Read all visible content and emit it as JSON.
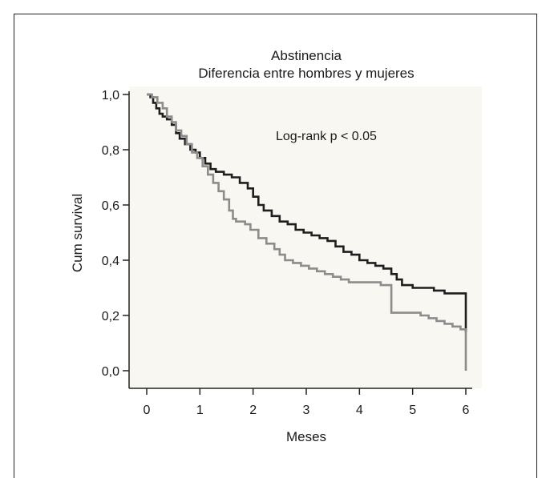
{
  "chart_data": {
    "type": "line",
    "step": true,
    "title": "Abstinencia",
    "subtitle": "Diferencia entre hombres y mujeres",
    "xlabel": "Meses",
    "ylabel": "Cum survival",
    "xlim": [
      0,
      6
    ],
    "ylim": [
      0,
      1
    ],
    "x_ticks": [
      "0",
      "1",
      "2",
      "3",
      "4",
      "5",
      "6"
    ],
    "y_ticks": [
      "0,0",
      "0,2",
      "0,4",
      "0,6",
      "0,8",
      "1,0"
    ],
    "annotation": "Log-rank p < 0.05",
    "grid": false,
    "legend": "none",
    "series": [
      {
        "color": "#1e1e1e",
        "x": [
          0.0,
          0.07,
          0.12,
          0.18,
          0.24,
          0.3,
          0.38,
          0.47,
          0.55,
          0.62,
          0.72,
          0.82,
          0.92,
          1.0,
          1.1,
          1.2,
          1.3,
          1.45,
          1.6,
          1.75,
          1.9,
          2.0,
          2.1,
          2.2,
          2.35,
          2.5,
          2.65,
          2.8,
          2.95,
          3.1,
          3.25,
          3.4,
          3.55,
          3.7,
          3.85,
          4.0,
          4.15,
          4.3,
          4.45,
          4.6,
          4.7,
          4.8,
          5.0,
          5.2,
          5.4,
          5.6,
          5.8,
          6.0,
          6.0
        ],
        "y": [
          1.0,
          0.99,
          0.97,
          0.95,
          0.93,
          0.92,
          0.91,
          0.89,
          0.86,
          0.84,
          0.82,
          0.8,
          0.79,
          0.77,
          0.75,
          0.73,
          0.72,
          0.71,
          0.7,
          0.68,
          0.66,
          0.63,
          0.6,
          0.58,
          0.56,
          0.54,
          0.53,
          0.51,
          0.5,
          0.49,
          0.48,
          0.47,
          0.45,
          0.43,
          0.42,
          0.4,
          0.39,
          0.38,
          0.37,
          0.35,
          0.33,
          0.31,
          0.3,
          0.3,
          0.29,
          0.28,
          0.28,
          0.27,
          0.14
        ]
      },
      {
        "color": "#8c8c8c",
        "x": [
          0.0,
          0.1,
          0.2,
          0.3,
          0.38,
          0.47,
          0.55,
          0.65,
          0.75,
          0.85,
          0.95,
          1.05,
          1.15,
          1.25,
          1.35,
          1.45,
          1.55,
          1.62,
          1.68,
          1.75,
          1.85,
          1.95,
          2.1,
          2.25,
          2.4,
          2.5,
          2.6,
          2.75,
          2.9,
          3.05,
          3.2,
          3.35,
          3.5,
          3.65,
          3.8,
          4.0,
          4.2,
          4.4,
          4.55,
          4.6,
          4.8,
          5.0,
          5.15,
          5.3,
          5.45,
          5.6,
          5.75,
          5.9,
          6.0,
          6.0
        ],
        "y": [
          1.0,
          0.99,
          0.97,
          0.95,
          0.92,
          0.9,
          0.87,
          0.85,
          0.82,
          0.79,
          0.77,
          0.74,
          0.71,
          0.68,
          0.65,
          0.62,
          0.58,
          0.55,
          0.54,
          0.54,
          0.53,
          0.51,
          0.48,
          0.46,
          0.44,
          0.42,
          0.4,
          0.39,
          0.38,
          0.37,
          0.36,
          0.35,
          0.34,
          0.33,
          0.32,
          0.32,
          0.32,
          0.31,
          0.31,
          0.21,
          0.21,
          0.21,
          0.2,
          0.19,
          0.18,
          0.17,
          0.16,
          0.15,
          0.13,
          0.0
        ]
      }
    ]
  }
}
